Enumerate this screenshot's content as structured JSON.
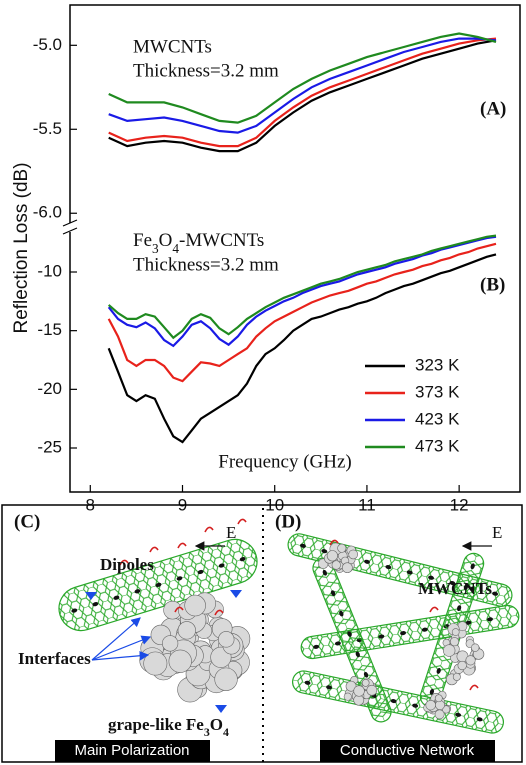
{
  "chart_data": [
    {
      "type": "line",
      "annotations": [
        "MWCNTs",
        "Thickness=3.2 mm",
        "(A)"
      ],
      "x": [
        8.2,
        8.4,
        8.6,
        8.8,
        9.0,
        9.2,
        9.4,
        9.6,
        9.8,
        10.0,
        10.2,
        10.4,
        10.6,
        10.8,
        11.0,
        11.2,
        11.4,
        11.6,
        11.8,
        12.0,
        12.2,
        12.4
      ],
      "series": [
        {
          "color": "#000000",
          "values": [
            -5.55,
            -5.6,
            -5.58,
            -5.57,
            -5.58,
            -5.61,
            -5.63,
            -5.63,
            -5.58,
            -5.48,
            -5.4,
            -5.33,
            -5.28,
            -5.24,
            -5.2,
            -5.16,
            -5.12,
            -5.08,
            -5.05,
            -5.02,
            -4.99,
            -4.97
          ]
        },
        {
          "color": "#e8221b",
          "values": [
            -5.52,
            -5.57,
            -5.55,
            -5.54,
            -5.55,
            -5.58,
            -5.6,
            -5.6,
            -5.55,
            -5.45,
            -5.37,
            -5.3,
            -5.25,
            -5.21,
            -5.17,
            -5.13,
            -5.09,
            -5.05,
            -5.02,
            -4.99,
            -4.97,
            -4.96
          ]
        },
        {
          "color": "#1a1ae6",
          "values": [
            -5.41,
            -5.45,
            -5.44,
            -5.43,
            -5.45,
            -5.48,
            -5.51,
            -5.52,
            -5.48,
            -5.4,
            -5.32,
            -5.25,
            -5.2,
            -5.16,
            -5.12,
            -5.08,
            -5.04,
            -5.01,
            -4.98,
            -4.96,
            -4.96,
            -4.97
          ]
        },
        {
          "color": "#1f8a1f",
          "values": [
            -5.29,
            -5.34,
            -5.34,
            -5.34,
            -5.37,
            -5.41,
            -5.45,
            -5.46,
            -5.42,
            -5.34,
            -5.26,
            -5.2,
            -5.15,
            -5.11,
            -5.07,
            -5.04,
            -5.01,
            -4.98,
            -4.95,
            -4.93,
            -4.95,
            -4.98
          ]
        }
      ],
      "xlim": [
        7.78,
        12.66
      ],
      "ylim": [
        -6.07,
        -4.76
      ],
      "yticks": [
        {
          "value": -6,
          "label": "-6.0"
        },
        {
          "value": -5.5,
          "label": "-5.5"
        },
        {
          "value": -5,
          "label": "-5.0"
        }
      ],
      "grid": false
    },
    {
      "type": "line",
      "y_label": "Reflection Loss (dB)",
      "x_label": "Frequency (GHz)",
      "annotations": [
        "Fe3O4-MWCNTs",
        "Thickness=3.2 mm",
        "(B)"
      ],
      "x": [
        8.2,
        8.3,
        8.4,
        8.5,
        8.6,
        8.7,
        8.8,
        8.9,
        9.0,
        9.1,
        9.2,
        9.3,
        9.4,
        9.5,
        9.6,
        9.7,
        9.8,
        9.9,
        10.0,
        10.1,
        10.2,
        10.3,
        10.4,
        10.5,
        10.6,
        10.7,
        10.8,
        10.9,
        11.0,
        11.1,
        11.2,
        11.3,
        11.4,
        11.5,
        11.6,
        11.7,
        11.8,
        11.9,
        12.0,
        12.1,
        12.2,
        12.3,
        12.4
      ],
      "series": [
        {
          "name": "323 K",
          "color": "#000000",
          "values": [
            -16.5,
            -18.5,
            -20.5,
            -21,
            -20.5,
            -20.8,
            -22.5,
            -24,
            -24.5,
            -23.5,
            -22.5,
            -22,
            -21.5,
            -21,
            -20.5,
            -19.5,
            -18,
            -17,
            -16.5,
            -15.8,
            -15,
            -14.5,
            -14,
            -13.8,
            -13.5,
            -13.2,
            -13,
            -12.7,
            -12.5,
            -12.2,
            -11.8,
            -11.5,
            -11.2,
            -11,
            -10.7,
            -10.4,
            -10.1,
            -9.9,
            -9.6,
            -9.3,
            -9,
            -8.7,
            -8.5
          ]
        },
        {
          "name": "373 K",
          "color": "#e8221b",
          "values": [
            -14,
            -15.5,
            -17.5,
            -18,
            -17.5,
            -17.5,
            -18,
            -19,
            -19.3,
            -18.5,
            -17.7,
            -17.8,
            -18,
            -17.5,
            -17,
            -16.5,
            -15.5,
            -14.8,
            -14.2,
            -13.8,
            -13.4,
            -13,
            -12.6,
            -12.3,
            -12,
            -11.8,
            -11.6,
            -11.3,
            -11,
            -10.8,
            -10.5,
            -10.2,
            -10,
            -9.8,
            -9.5,
            -9.3,
            -9,
            -8.8,
            -8.5,
            -8.3,
            -8,
            -7.8,
            -7.6
          ]
        },
        {
          "name": "423 K",
          "color": "#1a1ae6",
          "values": [
            -13,
            -14,
            -14.5,
            -14.7,
            -14.3,
            -14.8,
            -15.8,
            -16.3,
            -15.5,
            -14.5,
            -14.2,
            -14.8,
            -15.7,
            -16.2,
            -15.5,
            -14.5,
            -13.8,
            -13.3,
            -12.9,
            -12.5,
            -12.2,
            -11.8,
            -11.5,
            -11.2,
            -11,
            -10.8,
            -10.5,
            -10.2,
            -10,
            -9.8,
            -9.6,
            -9.3,
            -9.1,
            -8.9,
            -8.6,
            -8.4,
            -8.1,
            -7.9,
            -7.7,
            -7.5,
            -7.3,
            -7.1,
            -7.0
          ]
        },
        {
          "name": "473 K",
          "color": "#1f8a1f",
          "values": [
            -12.8,
            -13.5,
            -14,
            -14,
            -13.6,
            -13.8,
            -14.7,
            -15.6,
            -15,
            -14,
            -13.6,
            -13.9,
            -14.8,
            -15.3,
            -14.7,
            -14,
            -13.5,
            -13,
            -12.6,
            -12.2,
            -11.9,
            -11.6,
            -11.3,
            -11,
            -10.8,
            -10.6,
            -10.3,
            -10,
            -9.8,
            -9.6,
            -9.4,
            -9.1,
            -8.9,
            -8.7,
            -8.5,
            -8.2,
            -8,
            -7.8,
            -7.6,
            -7.4,
            -7.2,
            -7.0,
            -6.9
          ]
        }
      ],
      "xlim": [
        7.78,
        12.66
      ],
      "ylim": [
        -28.75,
        -6.42
      ],
      "xticks": [
        8,
        9,
        10,
        11,
        12
      ],
      "yticks": [
        -25,
        -20,
        -15,
        -10
      ],
      "legend": "lower right",
      "grid": false
    }
  ],
  "diagram": {
    "panels": [
      {
        "label": "(C)",
        "field": "E",
        "labels": [
          "Dipoles",
          "Interfaces",
          "grape-like Fe3O4"
        ],
        "caption": "Main Polarization"
      },
      {
        "label": "(D)",
        "field": "E",
        "labels": [
          "MWCNTs"
        ],
        "caption": "Conductive Network"
      }
    ]
  }
}
